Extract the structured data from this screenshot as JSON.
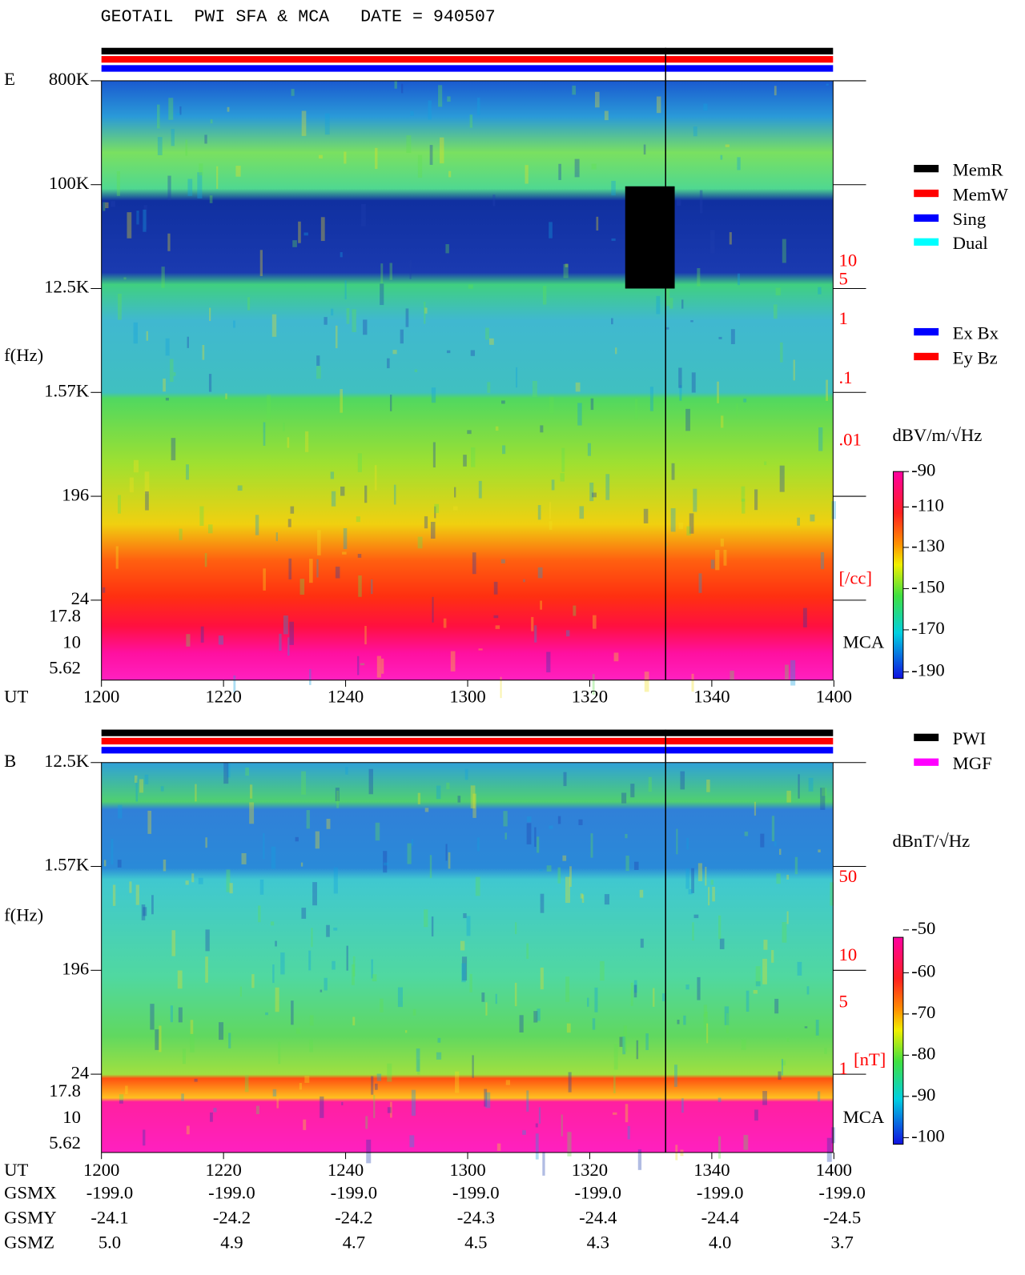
{
  "header": {
    "title": "GEOTAIL  PWI SFA & MCA   DATE = 940507"
  },
  "panels": [
    {
      "channel": "E",
      "y_label": "f(Hz)",
      "freq_ticks": [
        "800K",
        "100K",
        "12.5K",
        "1.57K",
        "196",
        "24"
      ],
      "mca_ticks": [
        "17.8",
        "10",
        "5.62"
      ],
      "mca_label": "MCA",
      "right_ticks": [
        "10",
        "5",
        "1",
        ".1",
        ".01"
      ],
      "right_unit": "[/cc]",
      "time_label": "UT",
      "time_ticks": [
        "1200",
        "1220",
        "1240",
        "1300",
        "1320",
        "1340",
        "1400"
      ],
      "colorbar": {
        "unit": "dBV/m/√Hz",
        "ticks": [
          "-90",
          "-110",
          "-130",
          "-150",
          "-170",
          "-190"
        ]
      },
      "legends": [
        [
          {
            "label": "MemR",
            "color": "#000000"
          },
          {
            "label": "MemW",
            "color": "#ff0000"
          },
          {
            "label": "Sing",
            "color": "#0000ff"
          },
          {
            "label": "Dual",
            "color": "#00ffff"
          }
        ],
        [
          {
            "label": "Ex Bx",
            "color": "#0000ff"
          },
          {
            "label": "Ey Bz",
            "color": "#ff0000"
          }
        ]
      ]
    },
    {
      "channel": "B",
      "y_label": "f(Hz)",
      "freq_ticks": [
        "12.5K",
        "1.57K",
        "196",
        "24"
      ],
      "mca_ticks": [
        "17.8",
        "10",
        "5.62"
      ],
      "mca_label": "MCA",
      "right_ticks": [
        "50",
        "10",
        "5",
        "1"
      ],
      "right_unit": "[nT]",
      "time_label": "UT",
      "time_ticks": [
        "1200",
        "1220",
        "1240",
        "1300",
        "1320",
        "1340",
        "1400"
      ],
      "colorbar": {
        "unit": "dBnT/√Hz",
        "ticks": [
          "-50",
          "-60",
          "-70",
          "-80",
          "-90",
          "-100"
        ]
      },
      "legends": [
        [
          {
            "label": "PWI",
            "color": "#000000"
          },
          {
            "label": "MGF",
            "color": "#ff00ff"
          }
        ]
      ]
    }
  ],
  "orbit": [
    {
      "label": "GSMX",
      "values": [
        "-199.0",
        "-199.0",
        "-199.0",
        "-199.0",
        "-199.0",
        "-199.0",
        "-199.0"
      ]
    },
    {
      "label": "GSMY",
      "values": [
        "-24.1",
        "-24.2",
        "-24.2",
        "-24.3",
        "-24.4",
        "-24.4",
        "-24.5"
      ]
    },
    {
      "label": "GSMZ",
      "values": [
        "5.0",
        "4.9",
        "4.7",
        "4.5",
        "4.3",
        "4.0",
        "3.7"
      ]
    }
  ]
}
